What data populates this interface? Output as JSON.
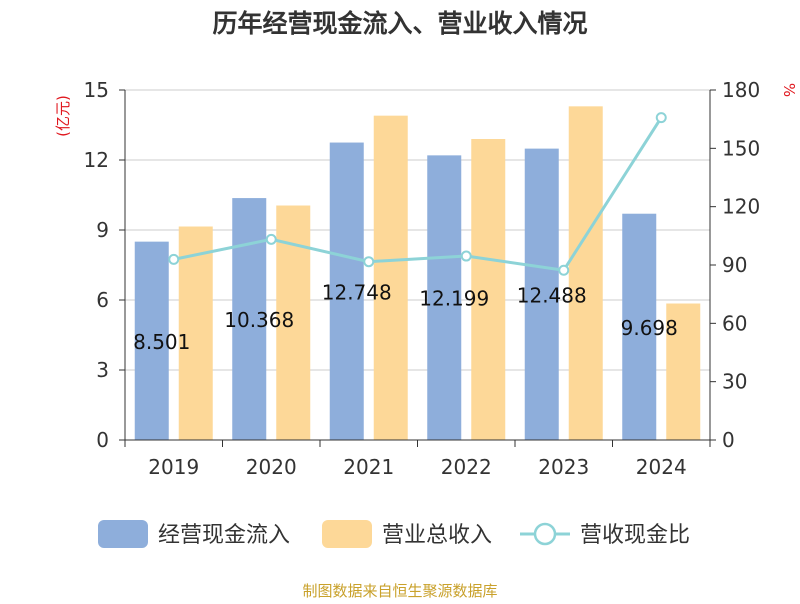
{
  "chart_data": {
    "type": "bar",
    "title": "历年经营现金流入、营业收入情况",
    "categories": [
      "2019",
      "2020",
      "2021",
      "2022",
      "2023",
      "2024"
    ],
    "series": [
      {
        "name": "经营现金流入",
        "kind": "bar",
        "axis": "left",
        "color": "#8eaedb",
        "values": [
          8.501,
          10.368,
          12.748,
          12.199,
          12.488,
          9.698
        ],
        "labels": [
          "8.501",
          "10.368",
          "12.748",
          "12.199",
          "12.488",
          "9.698"
        ]
      },
      {
        "name": "营业总收入",
        "kind": "bar",
        "axis": "left",
        "color": "#fdd898",
        "values": [
          9.15,
          10.05,
          13.9,
          12.9,
          14.3,
          5.85
        ]
      },
      {
        "name": "营收现金比",
        "kind": "line",
        "axis": "right",
        "color": "#8dd3d7",
        "values": [
          92.9,
          103.2,
          91.7,
          94.6,
          87.3,
          165.8
        ]
      }
    ],
    "y_left": {
      "label": "(亿元)",
      "min": 0,
      "max": 15,
      "ticks": [
        "0",
        "3",
        "6",
        "9",
        "12",
        "15"
      ]
    },
    "y_right": {
      "label": "%",
      "min": 0,
      "max": 180,
      "ticks": [
        "0",
        "30",
        "60",
        "90",
        "120",
        "150",
        "180"
      ]
    },
    "grid": true,
    "legend_position": "bottom",
    "source": "制图数据来自恒生聚源数据库"
  }
}
